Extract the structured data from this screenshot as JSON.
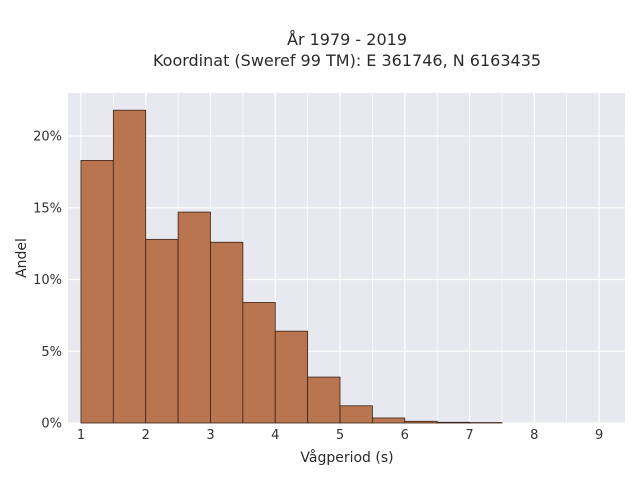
{
  "chart_data": {
    "type": "bar",
    "title_line1": "År 1979 - 2019",
    "title_line2": "Koordinat (Sweref 99 TM): E 361746, N 6163435",
    "xlabel": "Vågperiod (s)",
    "ylabel": "Andel",
    "bins": [
      {
        "from": 1.0,
        "to": 1.5,
        "value": 18.3
      },
      {
        "from": 1.5,
        "to": 2.0,
        "value": 21.8
      },
      {
        "from": 2.0,
        "to": 2.5,
        "value": 12.8
      },
      {
        "from": 2.5,
        "to": 3.0,
        "value": 14.7
      },
      {
        "from": 3.0,
        "to": 3.5,
        "value": 12.6
      },
      {
        "from": 3.5,
        "to": 4.0,
        "value": 8.4
      },
      {
        "from": 4.0,
        "to": 4.5,
        "value": 6.4
      },
      {
        "from": 4.5,
        "to": 5.0,
        "value": 3.2
      },
      {
        "from": 5.0,
        "to": 5.5,
        "value": 1.2
      },
      {
        "from": 5.5,
        "to": 6.0,
        "value": 0.35
      },
      {
        "from": 6.0,
        "to": 6.5,
        "value": 0.12
      },
      {
        "from": 6.5,
        "to": 7.0,
        "value": 0.05
      },
      {
        "from": 7.0,
        "to": 7.5,
        "value": 0.03
      }
    ],
    "xlim": [
      0.8,
      9.4
    ],
    "ylim": [
      0,
      23
    ],
    "x_ticks": [
      {
        "value": 1,
        "label": "1"
      },
      {
        "value": 2,
        "label": "2"
      },
      {
        "value": 3,
        "label": "3"
      },
      {
        "value": 4,
        "label": "4"
      },
      {
        "value": 5,
        "label": "5"
      },
      {
        "value": 6,
        "label": "6"
      },
      {
        "value": 7,
        "label": "7"
      },
      {
        "value": 8,
        "label": "8"
      },
      {
        "value": 9,
        "label": "9"
      }
    ],
    "y_ticks": [
      {
        "value": 0,
        "label": "0%"
      },
      {
        "value": 5,
        "label": "5%"
      },
      {
        "value": 10,
        "label": "10%"
      },
      {
        "value": 15,
        "label": "15%"
      },
      {
        "value": 20,
        "label": "20%"
      }
    ],
    "grid": true,
    "colors": {
      "bar_fill": "#b87550",
      "bar_stroke": "#3a2416",
      "plot_background": "#e8e8f0",
      "grid": "#ffffff"
    }
  }
}
